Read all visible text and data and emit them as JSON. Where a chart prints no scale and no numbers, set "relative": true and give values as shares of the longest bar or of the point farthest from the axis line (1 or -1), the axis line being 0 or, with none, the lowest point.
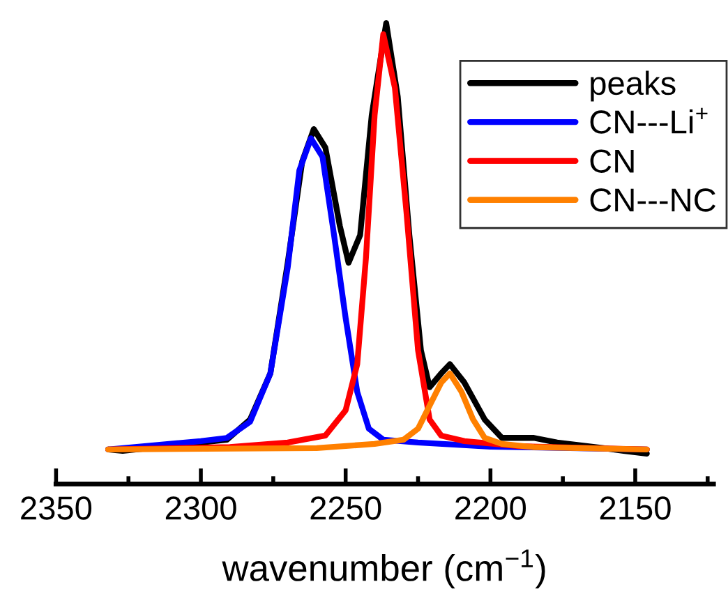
{
  "chart_data": {
    "type": "line",
    "relative": true,
    "xlabel": "wavenumber (cm$^{−1}$)",
    "xlim": [
      2350,
      2123
    ],
    "xticks": [
      2350,
      {
        "value": 2325,
        "label": null
      },
      2300,
      {
        "value": 2275,
        "label": null
      },
      2250,
      {
        "value": 2225,
        "label": null
      },
      2200,
      {
        "value": 2175,
        "label": null
      },
      2150,
      {
        "value": 2125,
        "label": null
      }
    ],
    "tick_labels": "x",
    "grid": false,
    "legend": "top right",
    "line_style": "solid",
    "marker": "none",
    "series": [
      {
        "name": "peaks",
        "color": "#000000",
        "x": [
          2332,
          2327,
          2291,
          2283,
          2276,
          2270,
          2265,
          2261,
          2257,
          2252,
          2249,
          2245,
          2241,
          2236,
          2232,
          2228,
          2224,
          2221,
          2217,
          2214,
          2209,
          2202,
          2196,
          2185,
          2177,
          2161,
          2154,
          2146
        ],
        "values": [
          0.075,
          0.072,
          0.096,
          0.14,
          0.24,
          0.48,
          0.7,
          0.77,
          0.73,
          0.56,
          0.48,
          0.54,
          0.8,
          1.0,
          0.84,
          0.54,
          0.29,
          0.21,
          0.24,
          0.26,
          0.22,
          0.14,
          0.1,
          0.1,
          0.09,
          0.078,
          0.072,
          0.066
        ]
      },
      {
        "name": "CN---Li$^{+}$",
        "color": "#0000ff",
        "x": [
          2332,
          2300,
          2291,
          2283,
          2276,
          2270,
          2266,
          2262,
          2258,
          2254,
          2250,
          2246,
          2242,
          2237,
          2225,
          2200,
          2146
        ],
        "values": [
          0.075,
          0.093,
          0.1,
          0.135,
          0.24,
          0.47,
          0.68,
          0.75,
          0.71,
          0.54,
          0.36,
          0.2,
          0.12,
          0.096,
          0.09,
          0.081,
          0.075
        ]
      },
      {
        "name": "CN",
        "color": "#ff0000",
        "x": [
          2332,
          2290,
          2270,
          2257,
          2250,
          2246,
          2243,
          2240,
          2237,
          2233,
          2229,
          2225,
          2221,
          2217,
          2209,
          2190,
          2146
        ],
        "values": [
          0.075,
          0.08,
          0.09,
          0.105,
          0.16,
          0.26,
          0.49,
          0.8,
          0.976,
          0.86,
          0.59,
          0.29,
          0.14,
          0.105,
          0.093,
          0.082,
          0.075
        ]
      },
      {
        "name": "CN---NC",
        "color": "#ff8000",
        "x": [
          2332,
          2260,
          2240,
          2230,
          2225,
          2221,
          2217,
          2214,
          2210,
          2206,
          2202,
          2196,
          2185,
          2146
        ],
        "values": [
          0.075,
          0.078,
          0.087,
          0.096,
          0.12,
          0.17,
          0.22,
          0.24,
          0.2,
          0.14,
          0.1,
          0.087,
          0.08,
          0.075
        ]
      }
    ]
  }
}
